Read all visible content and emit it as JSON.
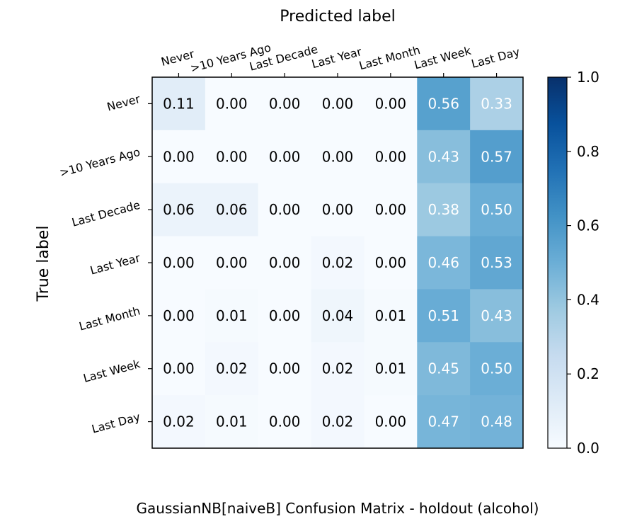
{
  "chart_data": {
    "type": "heatmap",
    "title": "Predicted label",
    "xlabel": "Predicted label",
    "ylabel": "True label",
    "caption": "GaussianNB[naiveB] Confusion Matrix - holdout (alcohol)",
    "x_categories": [
      "Never",
      ">10 Years Ago",
      "Last Decade",
      "Last Year",
      "Last Month",
      "Last Week",
      "Last Day"
    ],
    "y_categories": [
      "Never",
      ">10 Years Ago",
      "Last Decade",
      "Last Year",
      "Last Month",
      "Last Week",
      "Last Day"
    ],
    "values": [
      [
        0.11,
        0.0,
        0.0,
        0.0,
        0.0,
        0.56,
        0.33
      ],
      [
        0.0,
        0.0,
        0.0,
        0.0,
        0.0,
        0.43,
        0.57
      ],
      [
        0.06,
        0.06,
        0.0,
        0.0,
        0.0,
        0.38,
        0.5
      ],
      [
        0.0,
        0.0,
        0.0,
        0.02,
        0.0,
        0.46,
        0.53
      ],
      [
        0.0,
        0.01,
        0.0,
        0.04,
        0.01,
        0.51,
        0.43
      ],
      [
        0.0,
        0.02,
        0.0,
        0.02,
        0.01,
        0.45,
        0.5
      ],
      [
        0.02,
        0.01,
        0.0,
        0.02,
        0.0,
        0.47,
        0.48
      ]
    ],
    "colormap": "Blues",
    "vlim": [
      0,
      1
    ],
    "colorbar_ticks": [
      "0.0",
      "0.2",
      "0.4",
      "0.6",
      "0.8",
      "1.0"
    ],
    "text_colors": {
      "dark": "#000000",
      "light": "#ffffff"
    },
    "grid": false,
    "xlabel_position": "top"
  }
}
